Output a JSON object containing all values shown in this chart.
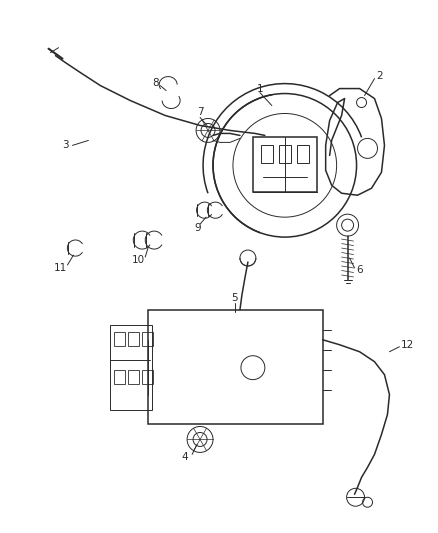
{
  "bg_color": "#ffffff",
  "line_color": "#2a2a2a",
  "text_color": "#2a2a2a",
  "figsize": [
    4.38,
    5.33
  ],
  "dpi": 100,
  "lw_main": 1.1,
  "lw_thin": 0.7,
  "lw_thick": 1.5,
  "font_size": 7.5
}
